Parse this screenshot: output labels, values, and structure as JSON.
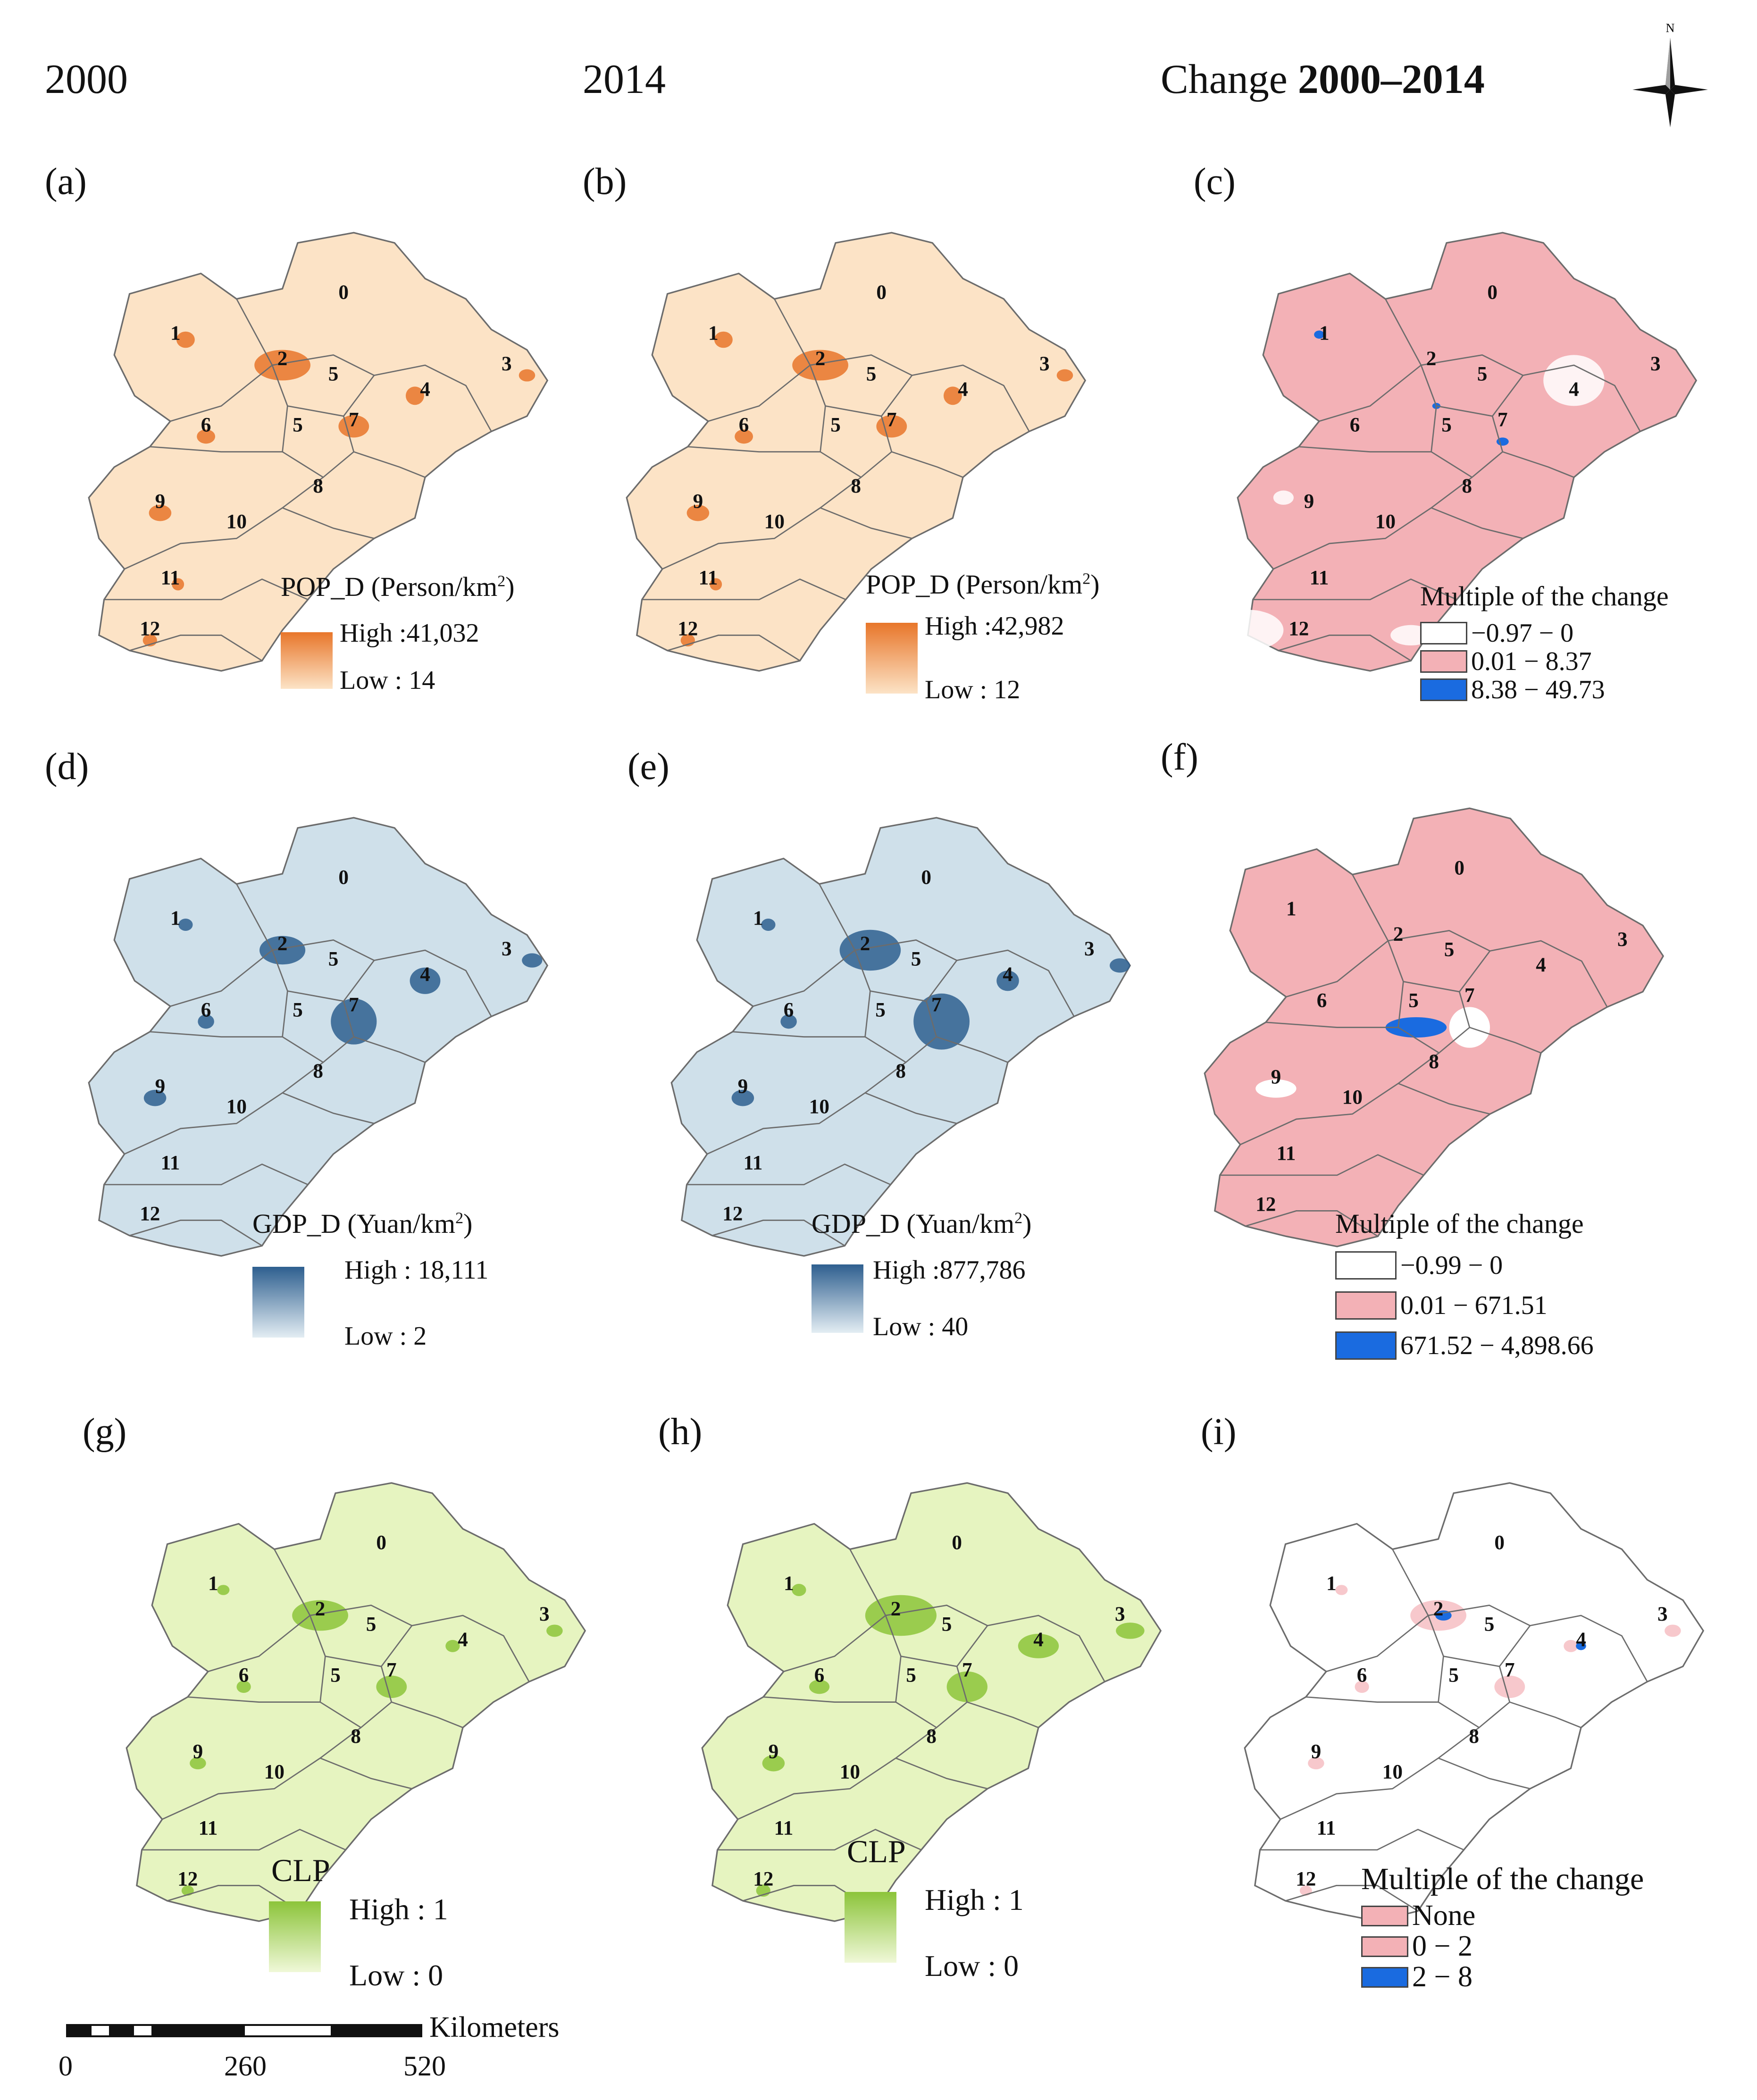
{
  "headers": {
    "col1": "2000",
    "col2": "2014",
    "col3_prefix": "Change ",
    "col3_bold": "2000–2014"
  },
  "compass": {
    "north_label": "N"
  },
  "region_labels": [
    "0",
    "1",
    "2",
    "3",
    "4",
    "5",
    "5",
    "6",
    "7",
    "8",
    "9",
    "10",
    "11",
    "12"
  ],
  "colors": {
    "pop_fill": "#fce3c6",
    "pop_hot": "#e8762a",
    "gdp_fill": "#cfe0ea",
    "gdp_hot": "#2e5f8f",
    "clp_fill": "#e6f4c0",
    "clp_hot": "#8cc43a",
    "change_fill": "#f3b1b6",
    "change_blue": "#1a6be0",
    "border": "#6c6c6c"
  },
  "panels": {
    "a": {
      "label": "(a)",
      "legend_title_main": "POP_D (Person/km",
      "legend_title_sup": "2",
      "legend_title_end": ")",
      "high": "High :41,032",
      "low": "Low : 14"
    },
    "b": {
      "label": "(b)",
      "legend_title_main": "POP_D (Person/km",
      "legend_title_sup": "2",
      "legend_title_end": ")",
      "high": "High :42,982",
      "low": "Low : 12"
    },
    "c": {
      "label": "(c)",
      "legend_title": "Multiple of the change",
      "classes": [
        "−0.97 − 0",
        "0.01 − 8.37",
        "8.38 − 49.73"
      ]
    },
    "d": {
      "label": "(d)",
      "legend_title_main": "GDP_D (Yuan/km",
      "legend_title_sup": "2",
      "legend_title_end": ")",
      "high": "High : 18,111",
      "low": "Low : 2"
    },
    "e": {
      "label": "(e)",
      "legend_title_main": "GDP_D (Yuan/km",
      "legend_title_sup": "2",
      "legend_title_end": ")",
      "high": "High :877,786",
      "low": "Low : 40"
    },
    "f": {
      "label": "(f)",
      "legend_title": "Multiple of the change",
      "classes": [
        "−0.99 − 0",
        "0.01 − 671.51",
        "671.52 − 4,898.66"
      ]
    },
    "g": {
      "label": "(g)",
      "legend_title": "CLP",
      "high": "High : 1",
      "low": "Low : 0"
    },
    "h": {
      "label": "(h)",
      "legend_title": "CLP",
      "high": "High : 1",
      "low": "Low : 0"
    },
    "i": {
      "label": "(i)",
      "legend_title": "Multiple of the change",
      "classes": [
        "None",
        "0 − 2",
        "2 − 8"
      ]
    }
  },
  "scalebar": {
    "unit": "Kilometers",
    "ticks": [
      "0",
      "260",
      "520"
    ]
  }
}
